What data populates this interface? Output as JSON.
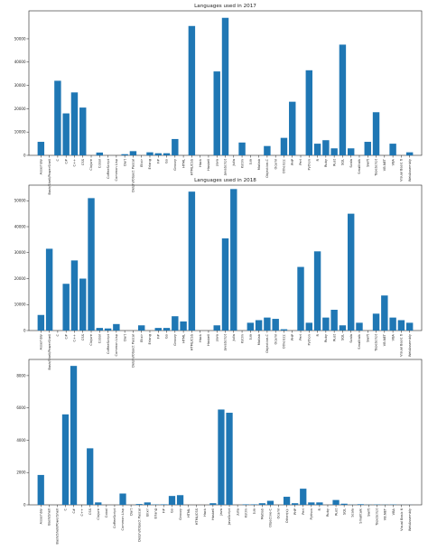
{
  "chart_data": [
    {
      "type": "bar",
      "title": "Languages used in 2017",
      "ylim": [
        0,
        62000
      ],
      "yticks": [
        0,
        10000,
        20000,
        30000,
        40000,
        50000
      ],
      "bar_color": "#1f77b4",
      "categories": [
        "Assembly",
        "Bash/Shell/PowerShell",
        "C",
        "C#",
        "C++",
        "CSS",
        "Clojure",
        "Cobol",
        "CoffeeScript",
        "Common Lisp",
        "Dart",
        "Delphi/Object Pascal",
        "Elixir",
        "Erlang",
        "F#",
        "Go",
        "Groovy",
        "HTML",
        "HTML/CSS",
        "Hack",
        "Haskell",
        "Java",
        "JavaScript",
        "Julia",
        "Kotlin",
        "Lua",
        "Matlab",
        "Objective-C",
        "Ocaml",
        "Other(s):",
        "PHP",
        "Perl",
        "Python",
        "R",
        "Ruby",
        "Rust",
        "SQL",
        "Scala",
        "Smalltalk",
        "Swift",
        "TypeScript",
        "VB.NET",
        "VBA",
        "Visual Basic 6",
        "WebAssembly"
      ],
      "values": [
        5800,
        0,
        32000,
        18000,
        27000,
        20500,
        0,
        1200,
        0,
        0,
        500,
        1800,
        0,
        1300,
        900,
        900,
        7000,
        0,
        55500,
        0,
        0,
        36000,
        59000,
        0,
        5500,
        0,
        0,
        4000,
        0,
        7500,
        23000,
        0,
        36500,
        5000,
        6500,
        3000,
        47500,
        3000,
        0,
        5800,
        18500,
        0,
        5000,
        0,
        1300
      ]
    },
    {
      "type": "bar",
      "title": "Languages used in 2018",
      "ylim": [
        0,
        56000
      ],
      "yticks": [
        0,
        10000,
        20000,
        30000,
        40000,
        50000
      ],
      "bar_color": "#1f77b4",
      "categories": [
        "Assembly",
        "Bash/Shell/PowerShell",
        "C",
        "C#",
        "C++",
        "CSS",
        "Clojure",
        "Cobol",
        "CoffeeScript",
        "Common Lisp",
        "Dart",
        "Delphi/Object Pascal",
        "Elixir",
        "Erlang",
        "F#",
        "Go",
        "Groovy",
        "HTML",
        "HTML/CSS",
        "Hack",
        "Haskell",
        "Java",
        "JavaScript",
        "Julia",
        "Kotlin",
        "Lua",
        "Matlab",
        "Objective-C",
        "Ocaml",
        "Other(s):",
        "PHP",
        "Perl",
        "Python",
        "R",
        "Ruby",
        "Rust",
        "SQL",
        "Scala",
        "Smalltalk",
        "Swift",
        "TypeScript",
        "VB.NET",
        "VBA",
        "Visual Basic 6",
        "WebAssembly"
      ],
      "values": [
        6000,
        31500,
        0,
        18000,
        27000,
        20000,
        51000,
        1000,
        800,
        2500,
        0,
        0,
        2000,
        0,
        1000,
        1000,
        5500,
        3500,
        53500,
        0,
        0,
        2000,
        35500,
        54500,
        0,
        3000,
        4000,
        5000,
        4500,
        500,
        0,
        24500,
        3000,
        30500,
        5000,
        8000,
        2000,
        45000,
        3000,
        0,
        6500,
        13500,
        5000,
        4000,
        3000
      ]
    },
    {
      "type": "bar",
      "title": "",
      "ylim": [
        0,
        9000
      ],
      "yticks": [
        0,
        2000,
        4000,
        6000,
        8000
      ],
      "bar_color": "#1f77b4",
      "categories": [
        "Assembly",
        "Bash/Shell",
        "Bash/Shell/PowerShell",
        "C",
        "C#",
        "C++",
        "CSS",
        "Clojure",
        "Cobol",
        "CoffeeScript",
        "Common Lisp",
        "Dart",
        "Delphi/Object Pascal",
        "Elixir",
        "Erlang",
        "F#",
        "Go",
        "Groovy",
        "HTML",
        "HTML/CSS",
        "Hack",
        "Haskell",
        "Java",
        "JavaScript",
        "Julia",
        "Kotlin",
        "Lua",
        "Matlab",
        "Objective-C",
        "Ocaml",
        "Other(s):",
        "PHP",
        "Perl",
        "Python",
        "R",
        "Ruby",
        "Rust",
        "SQL",
        "Scala",
        "Smalltalk",
        "Swift",
        "TypeScript",
        "VB.NET",
        "VBA",
        "Visual Basic 6",
        "WebAssembly"
      ],
      "values": [
        1850,
        0,
        0,
        5600,
        8600,
        0,
        3500,
        150,
        0,
        0,
        700,
        0,
        50,
        150,
        20,
        30,
        550,
        600,
        0,
        0,
        0,
        100,
        5900,
        5700,
        0,
        30,
        30,
        100,
        250,
        0,
        500,
        100,
        1000,
        150,
        150,
        0,
        300,
        70,
        10,
        40,
        10,
        20,
        10,
        20,
        5,
        5
      ]
    }
  ]
}
